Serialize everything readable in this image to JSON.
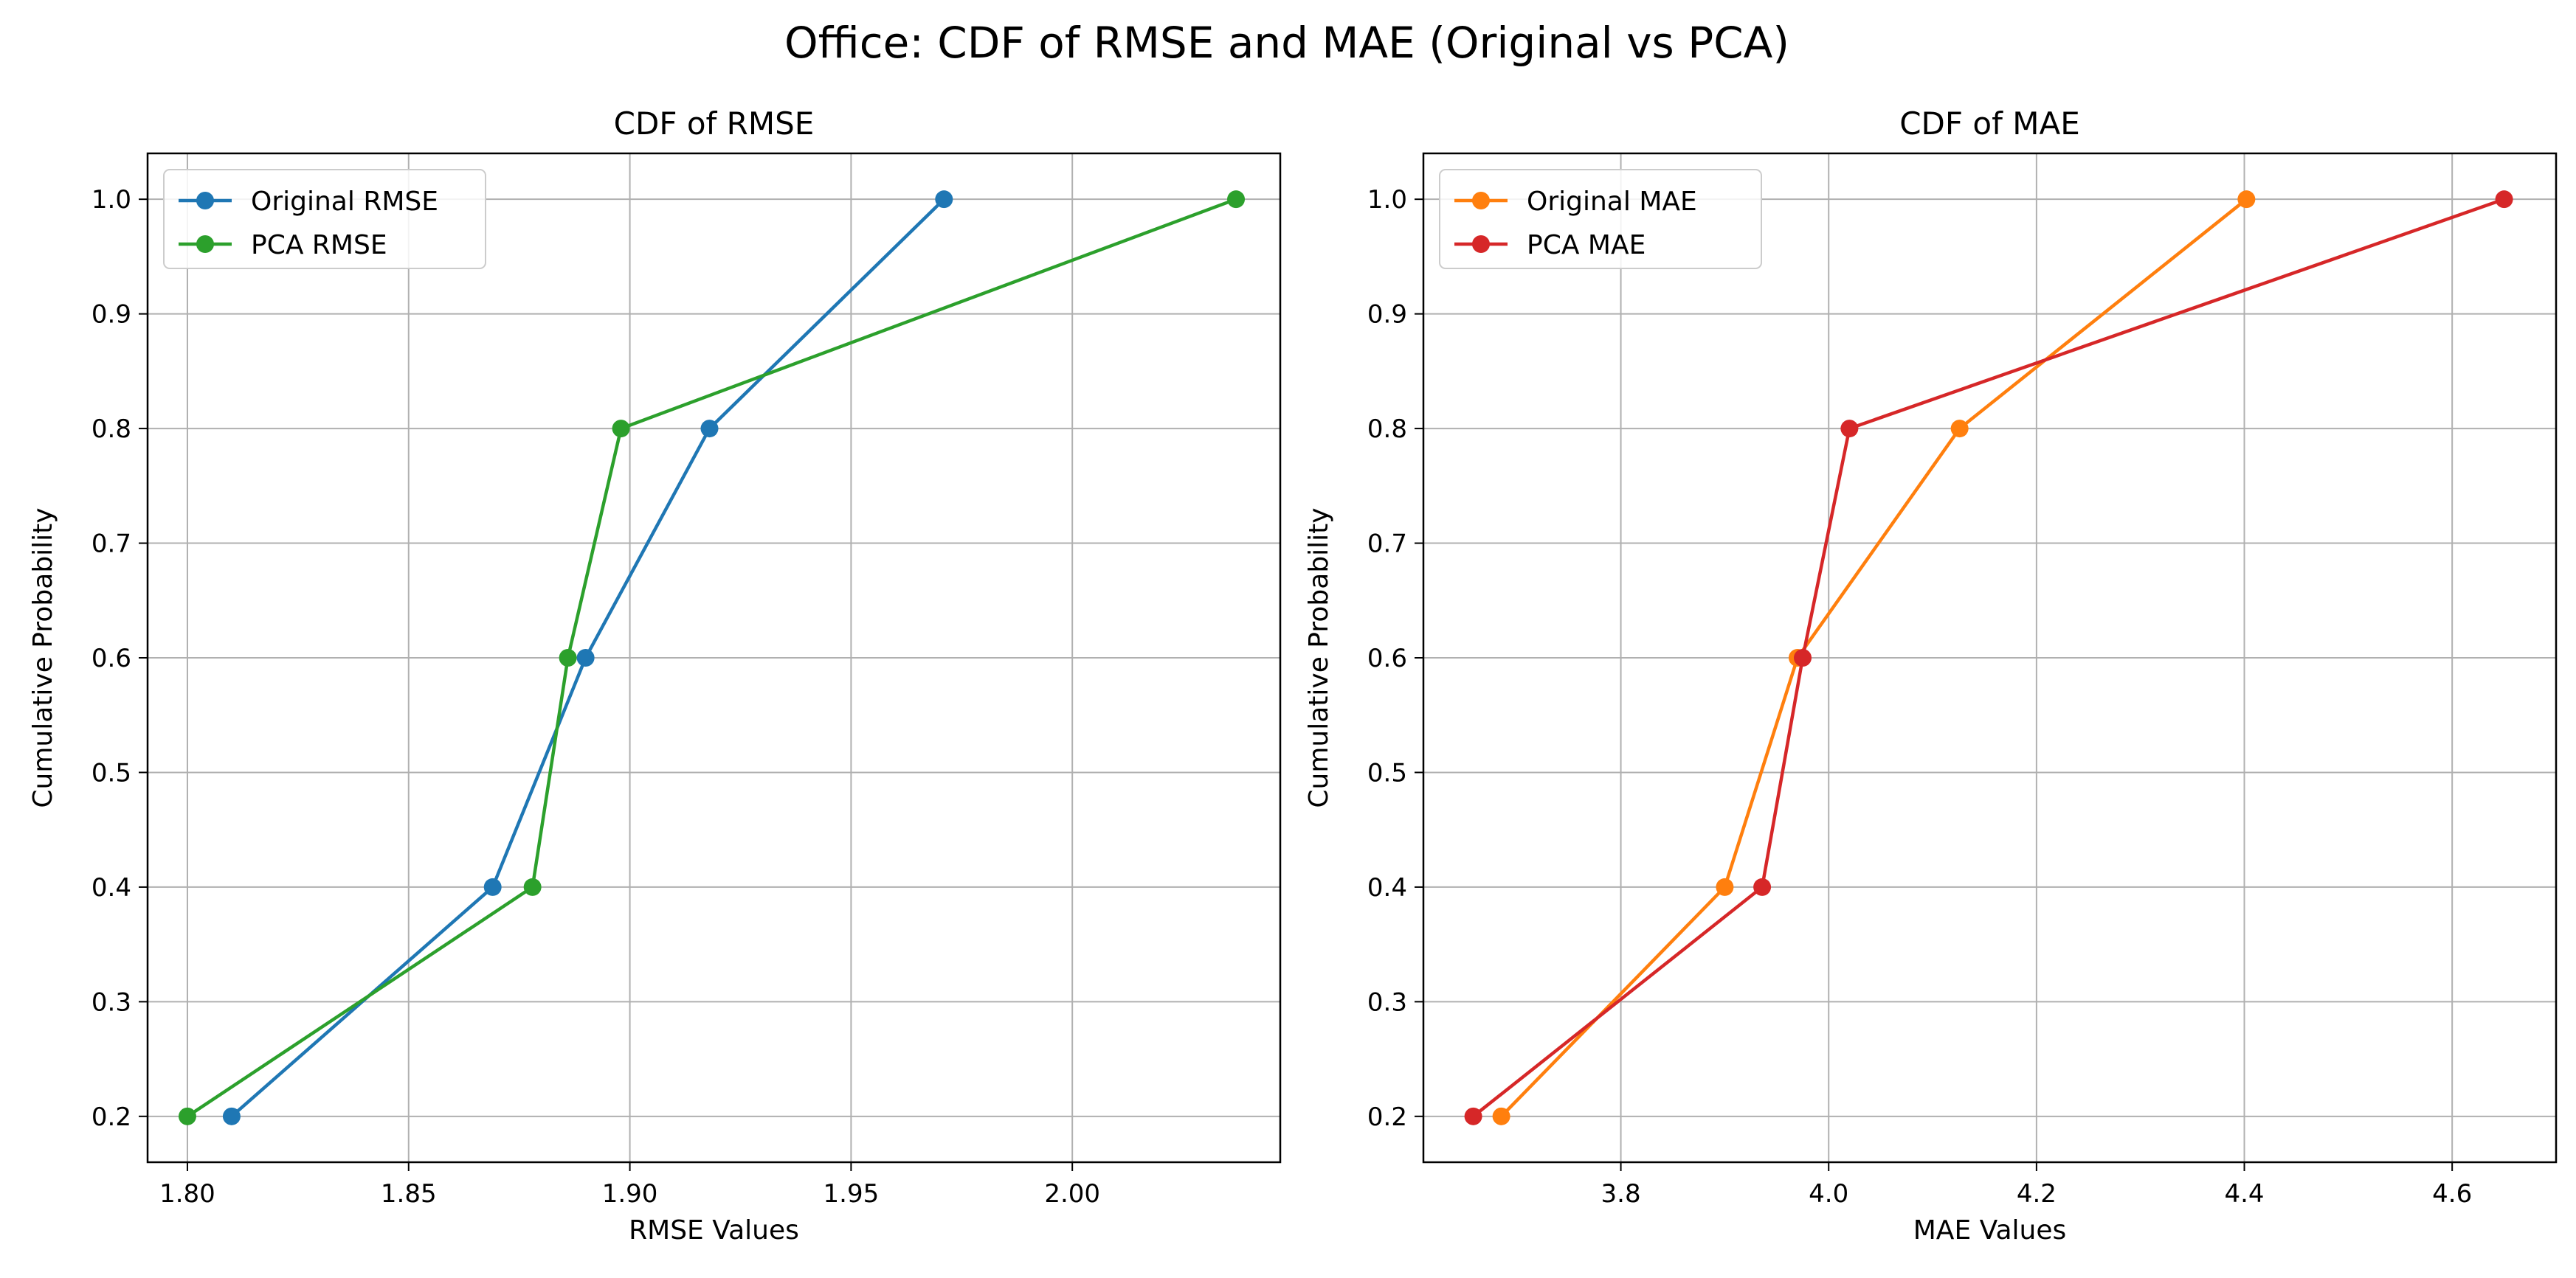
{
  "suptitle": "Office: CDF of RMSE and MAE (Original vs PCA)",
  "chart_data": [
    {
      "type": "line",
      "title": "CDF of RMSE",
      "xlabel": "RMSE Values",
      "ylabel": "Cumulative Probability",
      "xlim": [
        1.791,
        2.047
      ],
      "ylim": [
        0.16,
        1.04
      ],
      "xticks": [
        1.8,
        1.85,
        1.9,
        1.95,
        2.0
      ],
      "xtick_labels": [
        "1.80",
        "1.85",
        "1.90",
        "1.95",
        "2.00"
      ],
      "yticks": [
        0.2,
        0.3,
        0.4,
        0.5,
        0.6,
        0.7,
        0.8,
        0.9,
        1.0
      ],
      "ytick_labels": [
        "0.2",
        "0.3",
        "0.4",
        "0.5",
        "0.6",
        "0.7",
        "0.8",
        "0.9",
        "1.0"
      ],
      "grid": true,
      "legend_position": "top-left",
      "series": [
        {
          "name": "Original RMSE",
          "color": "#1f77b4",
          "marker": "circle",
          "x": [
            1.81,
            1.869,
            1.89,
            1.918,
            1.971
          ],
          "y": [
            0.2,
            0.4,
            0.6,
            0.8,
            1.0
          ]
        },
        {
          "name": "PCA RMSE",
          "color": "#2ca02c",
          "marker": "circle",
          "x": [
            1.8,
            1.878,
            1.886,
            1.898,
            2.037
          ],
          "y": [
            0.2,
            0.4,
            0.6,
            0.8,
            1.0
          ]
        }
      ]
    },
    {
      "type": "line",
      "title": "CDF of MAE",
      "xlabel": "MAE Values",
      "ylabel": "Cumulative Probability",
      "xlim": [
        3.61,
        4.7
      ],
      "ylim": [
        0.16,
        1.04
      ],
      "xticks": [
        3.8,
        4.0,
        4.2,
        4.4,
        4.6
      ],
      "xtick_labels": [
        "3.8",
        "4.0",
        "4.2",
        "4.4",
        "4.6"
      ],
      "yticks": [
        0.2,
        0.3,
        0.4,
        0.5,
        0.6,
        0.7,
        0.8,
        0.9,
        1.0
      ],
      "ytick_labels": [
        "0.2",
        "0.3",
        "0.4",
        "0.5",
        "0.6",
        "0.7",
        "0.8",
        "0.9",
        "1.0"
      ],
      "grid": true,
      "legend_position": "top-left",
      "series": [
        {
          "name": "Original MAE",
          "color": "#ff7f0e",
          "marker": "circle",
          "x": [
            3.685,
            3.9,
            3.97,
            4.126,
            4.402
          ],
          "y": [
            0.2,
            0.4,
            0.6,
            0.8,
            1.0
          ]
        },
        {
          "name": "PCA MAE",
          "color": "#d62728",
          "marker": "circle",
          "x": [
            3.658,
            3.936,
            3.975,
            4.02,
            4.65
          ],
          "y": [
            0.2,
            0.4,
            0.6,
            0.8,
            1.0
          ]
        }
      ]
    }
  ]
}
